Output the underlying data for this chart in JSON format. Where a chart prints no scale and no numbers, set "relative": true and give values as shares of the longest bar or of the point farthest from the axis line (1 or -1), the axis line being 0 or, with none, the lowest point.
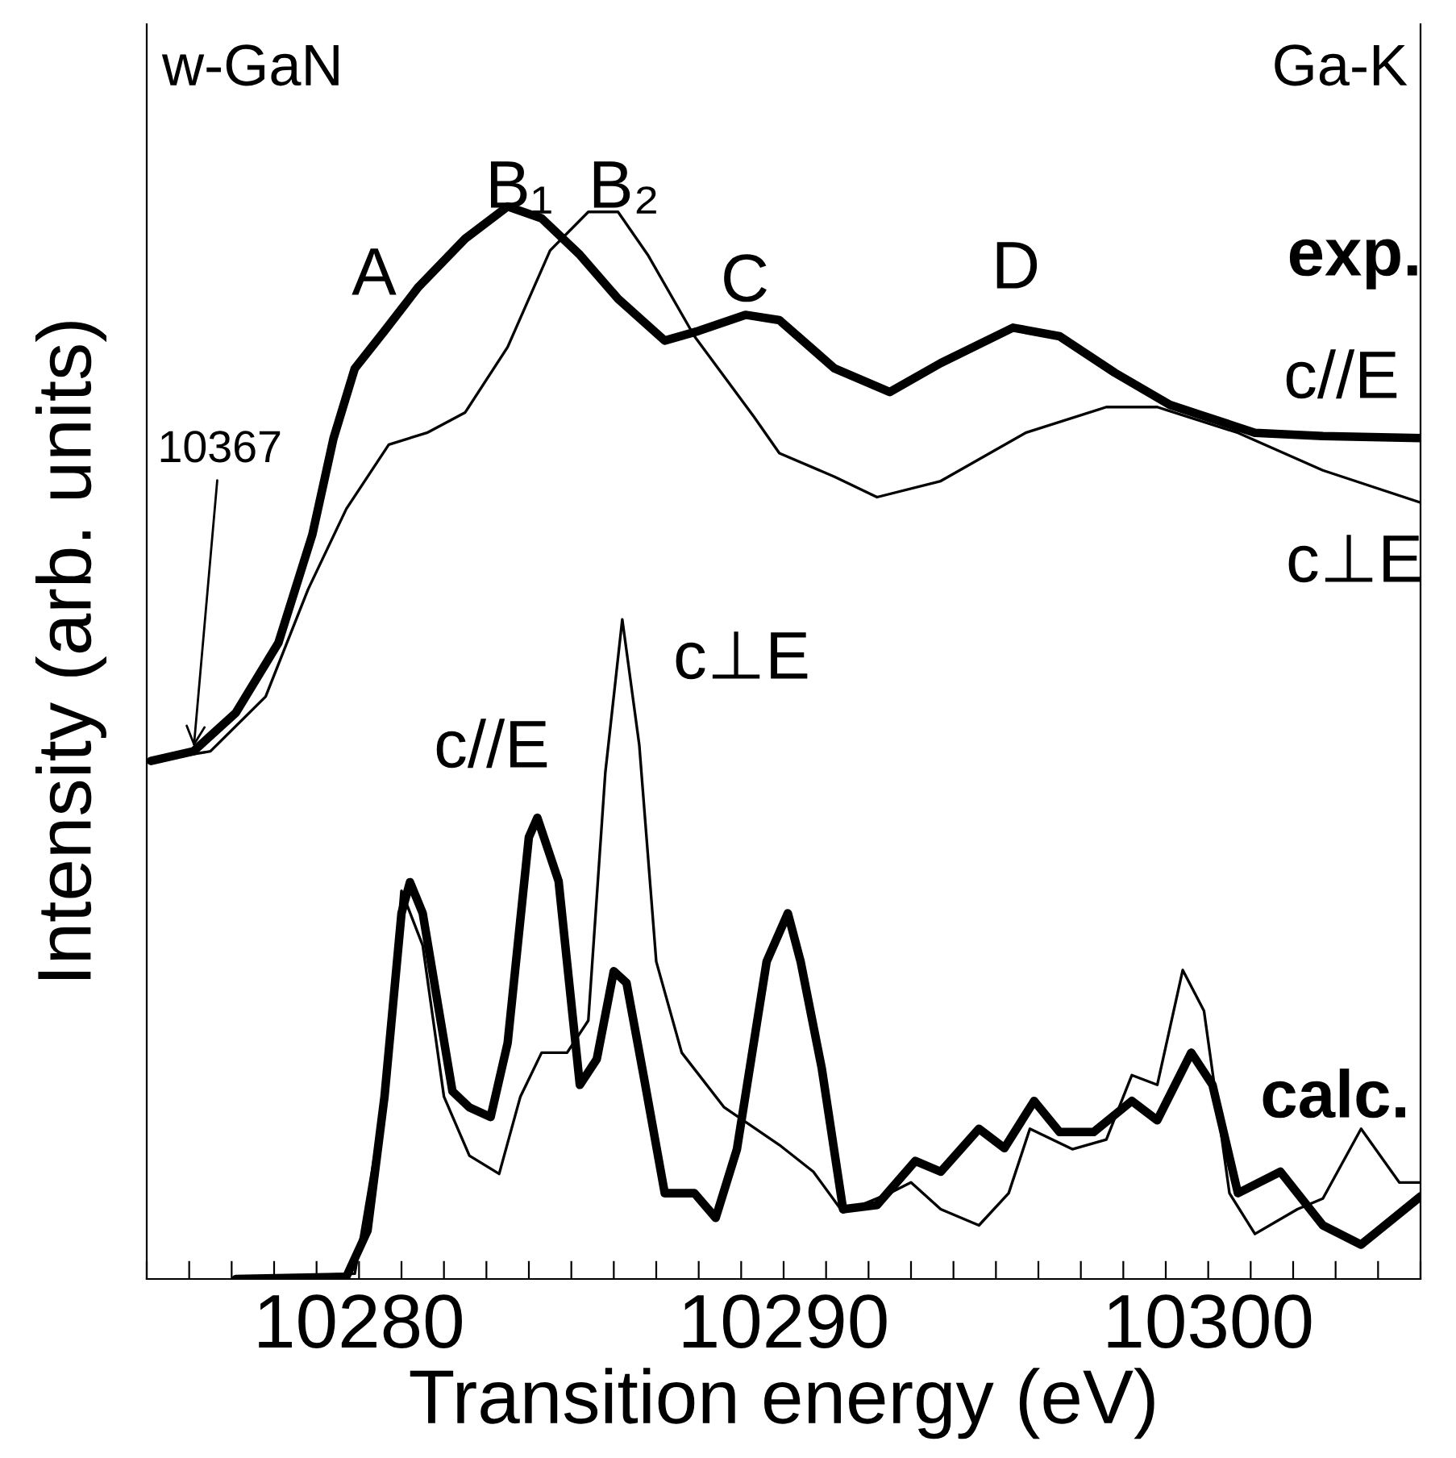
{
  "chart_data": {
    "type": "line",
    "relative": true,
    "xlabel": "Transition energy (eV)",
    "ylabel": "Intensity (arb. units)",
    "xlim": [
      10275,
      10305
    ],
    "xticks": [
      {
        "value": 10275,
        "label": null
      },
      {
        "value": 10276,
        "label": null
      },
      {
        "value": 10277,
        "label": null
      },
      {
        "value": 10278,
        "label": null
      },
      {
        "value": 10279,
        "label": null
      },
      10280,
      {
        "value": 10281,
        "label": null
      },
      {
        "value": 10282,
        "label": null
      },
      {
        "value": 10283,
        "label": null
      },
      {
        "value": 10284,
        "label": null
      },
      {
        "value": 10285,
        "label": null
      },
      {
        "value": 10286,
        "label": null
      },
      {
        "value": 10287,
        "label": null
      },
      {
        "value": 10288,
        "label": null
      },
      {
        "value": 10289,
        "label": null
      },
      10290,
      {
        "value": 10291,
        "label": null
      },
      {
        "value": 10292,
        "label": null
      },
      {
        "value": 10293,
        "label": null
      },
      {
        "value": 10294,
        "label": null
      },
      {
        "value": 10295,
        "label": null
      },
      {
        "value": 10296,
        "label": null
      },
      {
        "value": 10297,
        "label": null
      },
      {
        "value": 10298,
        "label": null
      },
      {
        "value": 10299,
        "label": null
      },
      10300,
      {
        "value": 10301,
        "label": null
      },
      {
        "value": 10302,
        "label": null
      },
      {
        "value": 10303,
        "label": null
      },
      {
        "value": 10304,
        "label": null
      },
      {
        "value": 10305,
        "label": null
      }
    ],
    "tick_labels": "x",
    "grid": false,
    "legend": false,
    "marker": "none",
    "line_style": "solid",
    "series": [
      {
        "color": "#000000",
        "x": [
          10275.1,
          10276.1,
          10277.1,
          10278.1,
          10278.9,
          10279.4,
          10279.9,
          10280.6,
          10281.4,
          10282.5,
          10283.5,
          10284.3,
          10285.2,
          10286.1,
          10287.2,
          10288.0,
          10289.1,
          10289.9,
          10291.2,
          10292.5,
          10293.7,
          10295.4,
          10296.5,
          10297.8,
          10299.1,
          10301.1,
          10302.7,
          10305.0
        ],
        "values": [
          0.483,
          0.492,
          0.528,
          0.593,
          0.694,
          0.784,
          0.849,
          0.884,
          0.925,
          0.97,
          1.0,
          0.989,
          0.955,
          0.914,
          0.875,
          0.884,
          0.899,
          0.894,
          0.849,
          0.827,
          0.854,
          0.887,
          0.879,
          0.845,
          0.815,
          0.789,
          0.786,
          0.784
        ]
      },
      {
        "color": "#000000",
        "x": [
          10275.1,
          10276.5,
          10277.8,
          10278.8,
          10279.7,
          10280.7,
          10281.6,
          10282.5,
          10283.5,
          10284.5,
          10285.4,
          10286.1,
          10286.8,
          10287.9,
          10289.3,
          10289.9,
          10291.2,
          10292.2,
          10293.7,
          10295.7,
          10297.6,
          10298.8,
          10300.7,
          10302.7,
          10305.0
        ],
        "values": [
          0.483,
          0.492,
          0.543,
          0.643,
          0.718,
          0.778,
          0.789,
          0.808,
          0.869,
          0.959,
          0.995,
          0.995,
          0.955,
          0.879,
          0.804,
          0.77,
          0.748,
          0.729,
          0.744,
          0.789,
          0.813,
          0.813,
          0.789,
          0.754,
          0.724
        ]
      },
      {
        "color": "#000000",
        "x": [
          10277.1,
          10279.7,
          10280.2,
          10280.6,
          10281.0,
          10281.2,
          10281.5,
          10281.9,
          10282.2,
          10282.6,
          10283.1,
          10283.5,
          10284.0,
          10284.2,
          10284.7,
          10285.2,
          10285.6,
          10286.0,
          10286.3,
          10286.7,
          10287.2,
          10287.9,
          10288.4,
          10288.9,
          10289.6,
          10290.1,
          10290.4,
          10290.9,
          10291.4,
          10292.2,
          10293.1,
          10293.7,
          10294.6,
          10295.2,
          10295.9,
          10296.5,
          10297.3,
          10298.2,
          10298.8,
          10299.6,
          10300.1,
          10300.7,
          10301.7,
          10302.7,
          10303.6,
          10305.0
        ],
        "values": [
          0,
          0.002,
          0.045,
          0.17,
          0.341,
          0.37,
          0.341,
          0.246,
          0.175,
          0.16,
          0.151,
          0.22,
          0.412,
          0.43,
          0.371,
          0.181,
          0.205,
          0.287,
          0.276,
          0.19,
          0.08,
          0.08,
          0.057,
          0.121,
          0.296,
          0.341,
          0.296,
          0.196,
          0.065,
          0.069,
          0.11,
          0.1,
          0.14,
          0.122,
          0.166,
          0.137,
          0.137,
          0.166,
          0.148,
          0.211,
          0.181,
          0.08,
          0.1,
          0.05,
          0.032,
          0.077
        ]
      },
      {
        "color": "#000000",
        "x": [
          10277.1,
          10279.9,
          10280.6,
          10281.0,
          10281.5,
          10282.0,
          10282.6,
          10283.3,
          10283.8,
          10284.3,
          10284.9,
          10285.4,
          10285.8,
          10286.2,
          10286.6,
          10287.0,
          10287.6,
          10288.6,
          10289.9,
          10290.7,
          10291.4,
          10292.5,
          10293.0,
          10293.7,
          10294.6,
          10295.3,
          10295.8,
          10296.8,
          10297.6,
          10298.2,
          10298.8,
          10299.4,
          10299.9,
          10300.5,
          10301.1,
          10302.1,
          10302.7,
          10303.6,
          10304.5,
          10305.0
        ],
        "values": [
          0,
          0.005,
          0.17,
          0.362,
          0.311,
          0.17,
          0.115,
          0.098,
          0.17,
          0.211,
          0.211,
          0.241,
          0.472,
          0.615,
          0.498,
          0.296,
          0.211,
          0.16,
          0.125,
          0.1,
          0.062,
          0.08,
          0.09,
          0.065,
          0.05,
          0.08,
          0.14,
          0.121,
          0.13,
          0.19,
          0.181,
          0.288,
          0.25,
          0.08,
          0.042,
          0.065,
          0.075,
          0.14,
          0.09,
          0.09
        ]
      }
    ],
    "annotations": [
      "w-GaN",
      "Ga-K",
      "A",
      "B₁",
      "B₂",
      "C",
      "D",
      "exp.",
      "c//E",
      "c⊥E",
      "c//E",
      "c⊥E",
      "calc.",
      {
        "text": "10367",
        "x": 10276.1,
        "y": 0.492
      }
    ]
  }
}
